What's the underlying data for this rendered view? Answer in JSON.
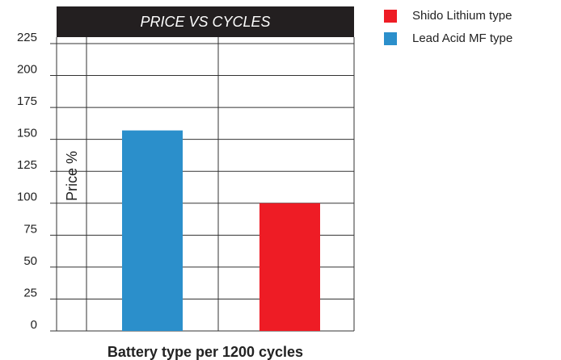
{
  "chart_data": {
    "type": "bar",
    "title": "PRICE VS CYCLES",
    "y_label": "Price %",
    "x_label": "Battery type per 1200 cycles",
    "categories": [
      null,
      null
    ],
    "series": [
      {
        "name": "Shido Lithium type",
        "color": "#ee1c25",
        "values": [
          null,
          100
        ]
      },
      {
        "name": "Lead Acid MF type",
        "color": "#2b8fcb",
        "values": [
          157,
          null
        ]
      }
    ],
    "ylim": [
      0,
      225
    ],
    "yticks": [
      0,
      25,
      50,
      75,
      100,
      125,
      150,
      175,
      200,
      225
    ],
    "grid": true,
    "legend": "right"
  }
}
